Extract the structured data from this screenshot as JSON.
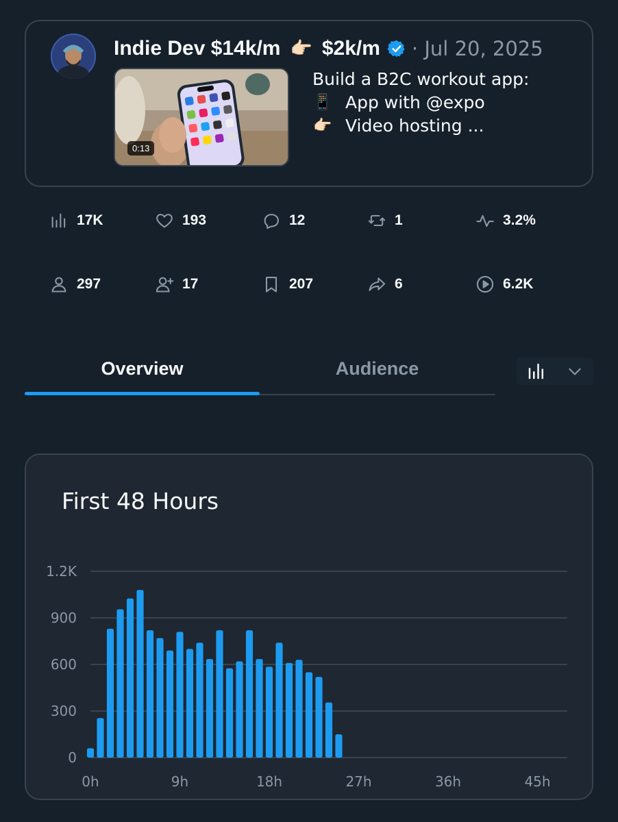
{
  "tweet": {
    "author": "Indie Dev $14k/m",
    "author_suffix": "$2k/m",
    "date": "· Jul 20, 2025",
    "video_duration": "0:13",
    "text_lines": [
      {
        "emoji": "",
        "text": "Build a B2C workout app:"
      },
      {
        "emoji": "📱",
        "text": "App with @expo"
      },
      {
        "emoji": "👉🏻",
        "text": "Video hosting ..."
      }
    ]
  },
  "stats": {
    "impressions": "17K",
    "likes": "193",
    "replies": "12",
    "reposts": "1",
    "engagement_rate": "3.2%",
    "profile_visits": "297",
    "follows": "17",
    "bookmarks": "207",
    "shares": "6",
    "video_views": "6.2K"
  },
  "tabs": [
    {
      "label": "Overview",
      "active": true
    },
    {
      "label": "Audience",
      "active": false
    }
  ],
  "colors": {
    "accent": "#1d9bf0",
    "background": "#15202b",
    "card": "#1e2732",
    "muted": "#8b98a5"
  },
  "chart_data": {
    "type": "bar",
    "title": "First 48 Hours",
    "xlabel": "",
    "ylabel": "",
    "x_tick_labels": [
      "0h",
      "9h",
      "18h",
      "27h",
      "36h",
      "45h"
    ],
    "x_ticks": [
      0,
      9,
      18,
      27,
      36,
      45
    ],
    "y_tick_labels": [
      "0",
      "300",
      "600",
      "900",
      "1.2K"
    ],
    "y_ticks": [
      0,
      300,
      600,
      900,
      1200
    ],
    "ylim": [
      0,
      1200
    ],
    "xlim": [
      0,
      48
    ],
    "grid": true,
    "x": [
      0,
      1,
      2,
      3,
      4,
      5,
      6,
      7,
      8,
      9,
      10,
      11,
      12,
      13,
      14,
      15,
      16,
      17,
      18,
      19,
      20,
      21,
      22,
      23,
      24,
      25
    ],
    "values": [
      60,
      255,
      830,
      955,
      1025,
      1080,
      820,
      770,
      690,
      810,
      700,
      740,
      635,
      820,
      575,
      620,
      820,
      635,
      585,
      740,
      610,
      630,
      550,
      520,
      355,
      150
    ]
  }
}
